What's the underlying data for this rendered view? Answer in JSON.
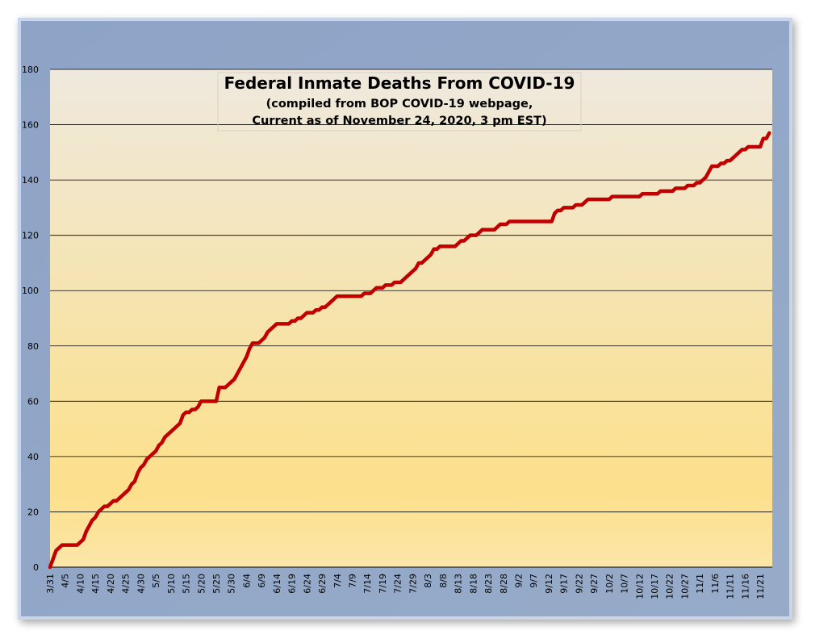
{
  "chart_data": {
    "type": "line",
    "title": "Federal Inmate Deaths From COVID-19",
    "subtitle": [
      "(compiled from BOP COVID-19 webpage,",
      "Current as of November 24, 2020, 3 pm EST)"
    ],
    "categories": [
      "3/31",
      null,
      null,
      null,
      null,
      "4/5",
      null,
      null,
      null,
      null,
      "4/10",
      null,
      null,
      null,
      null,
      "4/15",
      null,
      null,
      null,
      null,
      "4/20",
      null,
      null,
      null,
      null,
      "4/25",
      null,
      null,
      null,
      null,
      "4/30",
      null,
      null,
      null,
      null,
      "5/5",
      null,
      null,
      null,
      null,
      "5/10",
      null,
      null,
      null,
      null,
      "5/15",
      null,
      null,
      null,
      null,
      "5/20",
      null,
      null,
      null,
      null,
      "5/25",
      null,
      null,
      null,
      null,
      "5/30",
      null,
      null,
      null,
      null,
      "6/4",
      null,
      null,
      null,
      null,
      "6/9",
      null,
      null,
      null,
      null,
      "6/14",
      null,
      null,
      null,
      null,
      "6/19",
      null,
      null,
      null,
      null,
      "6/24",
      null,
      null,
      null,
      null,
      "6/29",
      null,
      null,
      null,
      null,
      "7/4",
      null,
      null,
      null,
      null,
      "7/9",
      null,
      null,
      null,
      null,
      "7/14",
      null,
      null,
      null,
      null,
      "7/19",
      null,
      null,
      null,
      null,
      "7/24",
      null,
      null,
      null,
      null,
      "7/29",
      null,
      null,
      null,
      null,
      "8/3",
      null,
      null,
      null,
      null,
      "8/8",
      null,
      null,
      null,
      null,
      "8/13",
      null,
      null,
      null,
      null,
      "8/18",
      null,
      null,
      null,
      null,
      "8/23",
      null,
      null,
      null,
      null,
      "8/28",
      null,
      null,
      null,
      null,
      "9/2",
      null,
      null,
      null,
      null,
      "9/7",
      null,
      null,
      null,
      null,
      "9/12",
      null,
      null,
      null,
      null,
      "9/17",
      null,
      null,
      null,
      null,
      "9/22",
      null,
      null,
      null,
      null,
      "9/27",
      null,
      null,
      null,
      null,
      "10/2",
      null,
      null,
      null,
      null,
      "10/7",
      null,
      null,
      null,
      null,
      "10/12",
      null,
      null,
      null,
      null,
      "10/17",
      null,
      null,
      null,
      null,
      "10/22",
      null,
      null,
      null,
      null,
      "10/27",
      null,
      null,
      null,
      null,
      "11/1",
      null,
      null,
      null,
      null,
      "11/6",
      null,
      null,
      null,
      null,
      "11/11",
      null,
      null,
      null,
      null,
      "11/16",
      null,
      null,
      null,
      null,
      "11/21",
      null,
      null,
      null
    ],
    "series": [
      {
        "color": "#c00000",
        "values": [
          0,
          3,
          6,
          7,
          8,
          8,
          8,
          8,
          8,
          8,
          9,
          10,
          13,
          15,
          17,
          18,
          20,
          21,
          22,
          22,
          23,
          24,
          24,
          25,
          26,
          27,
          28,
          30,
          31,
          34,
          36,
          37,
          39,
          40,
          41,
          42,
          44,
          45,
          47,
          48,
          49,
          50,
          51,
          52,
          55,
          56,
          56,
          57,
          57,
          58,
          60,
          60,
          60,
          60,
          60,
          60,
          65,
          65,
          65,
          66,
          67,
          68,
          70,
          72,
          74,
          76,
          79,
          81,
          81,
          81,
          82,
          83,
          85,
          86,
          87,
          88,
          88,
          88,
          88,
          88,
          89,
          89,
          90,
          90,
          91,
          92,
          92,
          92,
          93,
          93,
          94,
          94,
          95,
          96,
          97,
          98,
          98,
          98,
          98,
          98,
          98,
          98,
          98,
          98,
          99,
          99,
          99,
          100,
          101,
          101,
          101,
          102,
          102,
          102,
          103,
          103,
          103,
          104,
          105,
          106,
          107,
          108,
          110,
          110,
          111,
          112,
          113,
          115,
          115,
          116,
          116,
          116,
          116,
          116,
          116,
          117,
          118,
          118,
          119,
          120,
          120,
          120,
          121,
          122,
          122,
          122,
          122,
          122,
          123,
          124,
          124,
          124,
          125,
          125,
          125,
          125,
          125,
          125,
          125,
          125,
          125,
          125,
          125,
          125,
          125,
          125,
          125,
          128,
          129,
          129,
          130,
          130,
          130,
          130,
          131,
          131,
          131,
          132,
          133,
          133,
          133,
          133,
          133,
          133,
          133,
          133,
          134,
          134,
          134,
          134,
          134,
          134,
          134,
          134,
          134,
          134,
          135,
          135,
          135,
          135,
          135,
          135,
          136,
          136,
          136,
          136,
          136,
          137,
          137,
          137,
          137,
          138,
          138,
          138,
          139,
          139,
          140,
          141,
          143,
          145,
          145,
          145,
          146,
          146,
          147,
          147,
          148,
          149,
          150,
          151,
          151,
          152,
          152,
          152,
          152,
          152,
          155,
          155,
          157
        ]
      }
    ],
    "ylim": [
      0,
      180
    ],
    "yticks": [
      0,
      20,
      40,
      60,
      80,
      100,
      120,
      140,
      160,
      180
    ],
    "grid": true
  }
}
